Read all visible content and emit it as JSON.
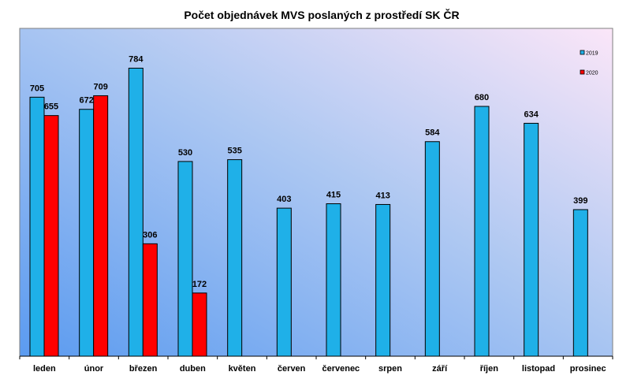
{
  "chart_data": {
    "type": "bar",
    "title": "Počet objednávek MVS poslaných z prostředí SK ČR",
    "xlabel": "",
    "ylabel": "",
    "ylim": [
      0,
      850
    ],
    "grid": false,
    "legend_position": "top-right",
    "categories": [
      "leden",
      "únor",
      "březen",
      "duben",
      "květen",
      "červen",
      "červenec",
      "srpen",
      "září",
      "říjen",
      "listopad",
      "prosinec"
    ],
    "series": [
      {
        "name": "2019",
        "color": "#1fb0e8",
        "values": [
          705,
          672,
          784,
          530,
          535,
          403,
          415,
          413,
          584,
          680,
          634,
          399
        ]
      },
      {
        "name": "2020",
        "color": "#ff0000",
        "values": [
          655,
          709,
          306,
          172,
          null,
          null,
          null,
          null,
          null,
          null,
          null,
          null
        ]
      }
    ]
  }
}
